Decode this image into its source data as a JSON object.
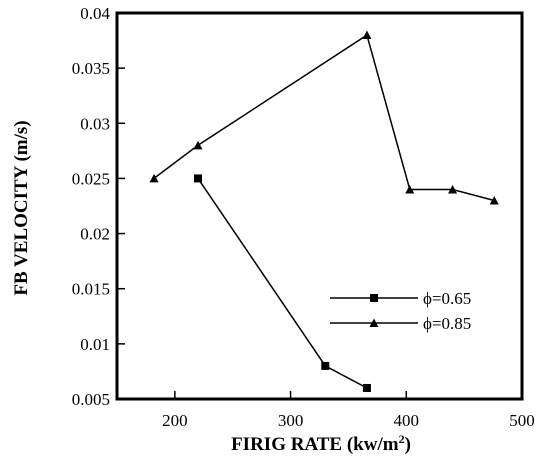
{
  "chart_data": {
    "type": "line",
    "xlabel": "FIRIG RATE (kw/m",
    "xlabel_superscript": "2",
    "xlabel_suffix": ")",
    "ylabel": "FB VELOCITY (m/s)",
    "xlim": [
      150,
      500
    ],
    "ylim": [
      0.005,
      0.04
    ],
    "x_ticks": [
      200,
      300,
      400,
      500
    ],
    "y_ticks": [
      0.005,
      0.01,
      0.015,
      0.02,
      0.025,
      0.03,
      0.035,
      0.04
    ],
    "x_tick_labels": [
      "200",
      "300",
      "400",
      "500"
    ],
    "y_tick_labels": [
      "0.005",
      "0.01",
      "0.015",
      "0.02",
      "0.025",
      "0.03",
      "0.035",
      "0.04"
    ],
    "grid": false,
    "legend_position": "lower-right",
    "series": [
      {
        "name": "ϕ=0.65",
        "marker": "square",
        "color": "#000000",
        "points": [
          {
            "x": 220,
            "y": 0.025
          },
          {
            "x": 330,
            "y": 0.008
          },
          {
            "x": 366,
            "y": 0.006
          }
        ]
      },
      {
        "name": "ϕ=0.85",
        "marker": "triangle",
        "color": "#000000",
        "points": [
          {
            "x": 182,
            "y": 0.025
          },
          {
            "x": 220,
            "y": 0.028
          },
          {
            "x": 366,
            "y": 0.038
          },
          {
            "x": 403,
            "y": 0.024
          },
          {
            "x": 440,
            "y": 0.024
          },
          {
            "x": 476,
            "y": 0.023
          }
        ]
      }
    ]
  }
}
